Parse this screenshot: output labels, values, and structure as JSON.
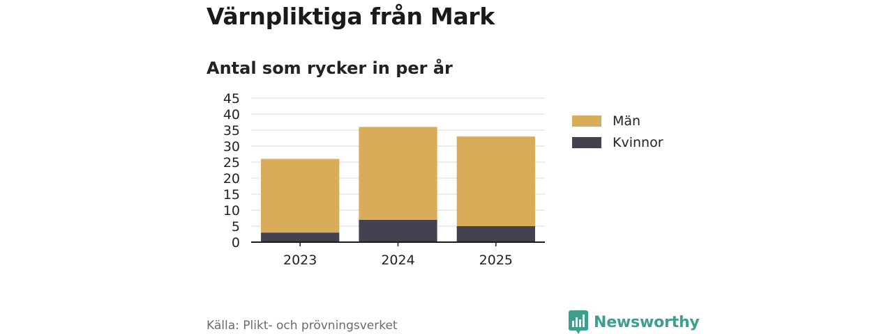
{
  "header": {
    "title": "Värnpliktiga från Mark",
    "subtitle": "Antal som rycker in per år"
  },
  "chart_data": {
    "type": "bar",
    "stacked": true,
    "categories": [
      "2023",
      "2024",
      "2025"
    ],
    "series": [
      {
        "name": "Kvinnor",
        "values": [
          3,
          7,
          5
        ],
        "color": "#45414f"
      },
      {
        "name": "Män",
        "values": [
          23,
          29,
          28
        ],
        "color": "#d9ac5a"
      }
    ],
    "y_ticks": [
      "0",
      "5",
      "10",
      "15",
      "20",
      "25",
      "30",
      "35",
      "40",
      "45"
    ],
    "ylim": [
      0,
      45
    ],
    "grid": true,
    "legend_position": "right",
    "legend_order": [
      "Män",
      "Kvinnor"
    ]
  },
  "footer": {
    "source": "Källa: Plikt- och prövningsverket",
    "brand": "Newsworthy",
    "brand_icon": "newsworthy-logo-icon",
    "brand_color": "#3d9e8e"
  }
}
